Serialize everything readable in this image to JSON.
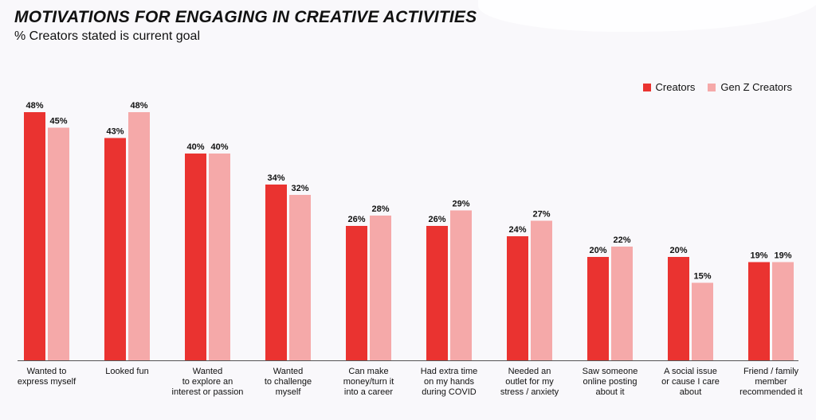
{
  "title": "MOTIVATIONS FOR ENGAGING IN CREATIVE ACTIVITIES",
  "subtitle": "% Creators stated is current goal",
  "colors": {
    "creators": "#ea3330",
    "genz": "#f5a9a9"
  },
  "chart_data": {
    "type": "bar",
    "title": "MOTIVATIONS FOR ENGAGING IN CREATIVE ACTIVITIES",
    "subtitle": "% Creators stated is current goal",
    "ylim": [
      0,
      50
    ],
    "legend_position": "top-right",
    "grid": false,
    "categories": [
      [
        "Wanted to",
        "express myself"
      ],
      [
        "Looked fun"
      ],
      [
        "Wanted",
        "to explore an",
        "interest or passion"
      ],
      [
        "Wanted",
        "to challenge",
        "myself"
      ],
      [
        "Can make",
        "money/turn it",
        "into a career"
      ],
      [
        "Had extra time",
        "on my hands",
        "during COVID"
      ],
      [
        "Needed an",
        "outlet for my",
        "stress / anxiety"
      ],
      [
        "Saw someone",
        "online posting",
        "about it"
      ],
      [
        "A social issue",
        "or cause I care",
        "about"
      ],
      [
        "Friend / family",
        "member",
        "recommended it"
      ]
    ],
    "series": [
      {
        "name": "Creators",
        "values": [
          48,
          43,
          40,
          34,
          26,
          26,
          24,
          20,
          20,
          19
        ]
      },
      {
        "name": "Gen Z Creators",
        "values": [
          45,
          48,
          40,
          32,
          28,
          29,
          27,
          22,
          15,
          19
        ]
      }
    ]
  }
}
